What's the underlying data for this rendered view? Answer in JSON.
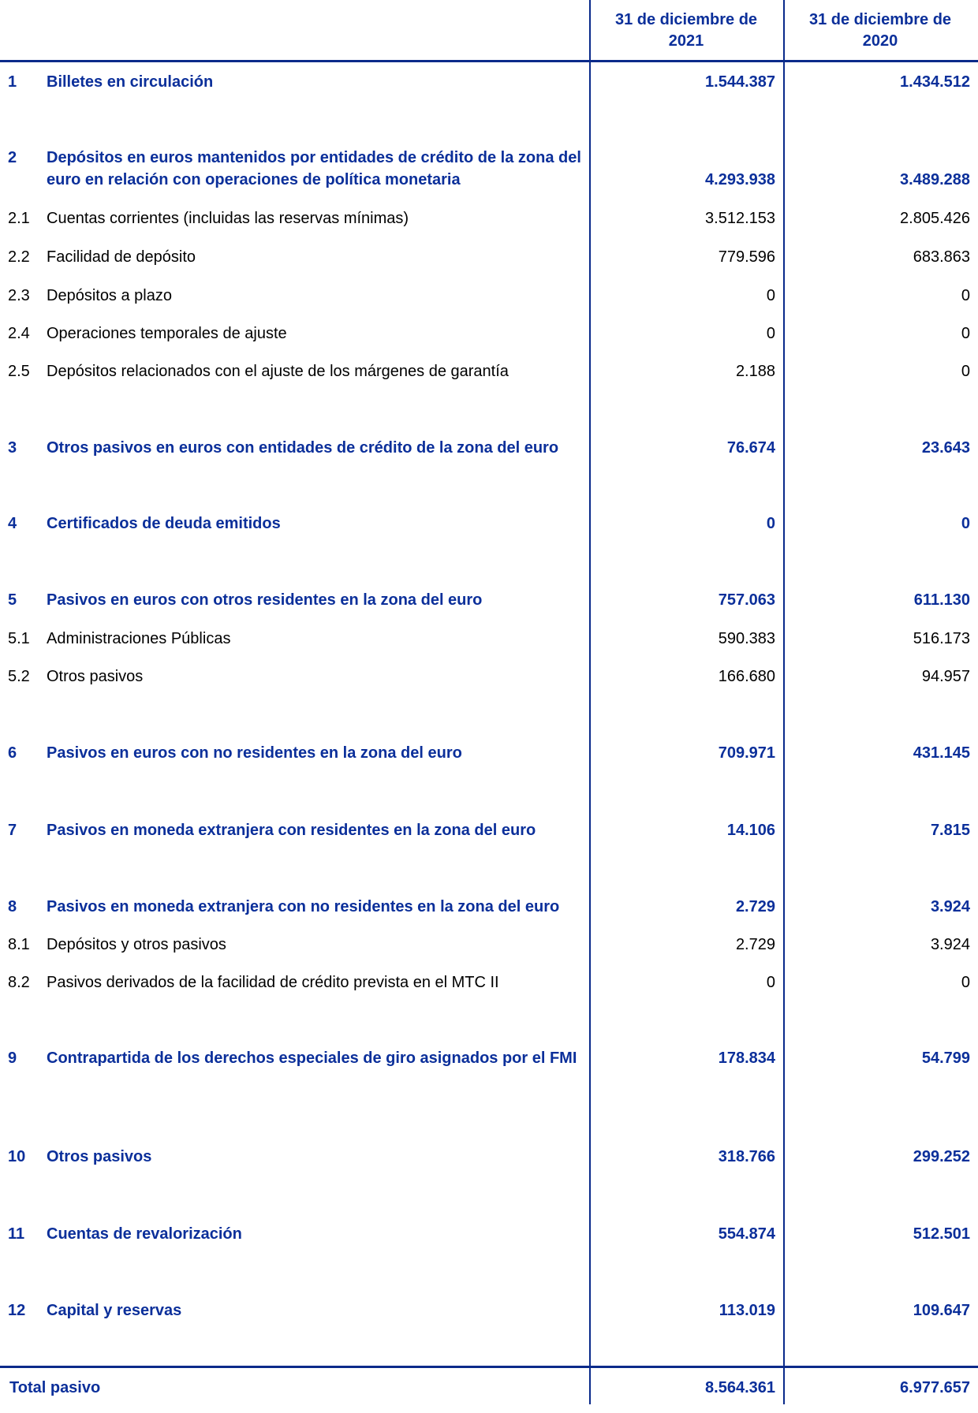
{
  "header": {
    "col1": "31 de diciembre de 2021",
    "col2": "31 de diciembre de 2020"
  },
  "rows": [
    {
      "num": "1",
      "label": "Billetes en circulación",
      "v2021": "1.544.387",
      "v2020": "1.434.512",
      "main": true
    },
    {
      "num": "2",
      "label": "Depósitos en euros mantenidos por entidades de crédito de la zona del euro en relación con operaciones de política monetaria",
      "v2021": "4.293.938",
      "v2020": "3.489.288",
      "main": true
    },
    {
      "num": "2.1",
      "label": "Cuentas corrientes (incluidas las reservas mínimas)",
      "v2021": "3.512.153",
      "v2020": "2.805.426",
      "main": false
    },
    {
      "num": "2.2",
      "label": "Facilidad de depósito",
      "v2021": "779.596",
      "v2020": "683.863",
      "main": false
    },
    {
      "num": "2.3",
      "label": "Depósitos a plazo",
      "v2021": "0",
      "v2020": "0",
      "main": false
    },
    {
      "num": "2.4",
      "label": "Operaciones temporales de ajuste",
      "v2021": "0",
      "v2020": "0",
      "main": false
    },
    {
      "num": "2.5",
      "label": "Depósitos relacionados con el ajuste de los márgenes de garantía",
      "v2021": "2.188",
      "v2020": "0",
      "main": false
    },
    {
      "num": "3",
      "label": "Otros pasivos en euros con entidades de crédito de la zona del euro",
      "v2021": "76.674",
      "v2020": "23.643",
      "main": true
    },
    {
      "num": "4",
      "label": "Certificados de deuda emitidos",
      "v2021": "0",
      "v2020": "0",
      "main": true
    },
    {
      "num": "5",
      "label": "Pasivos en euros con otros residentes en la zona del euro",
      "v2021": "757.063",
      "v2020": "611.130",
      "main": true
    },
    {
      "num": "5.1",
      "label": "Administraciones Públicas",
      "v2021": "590.383",
      "v2020": "516.173",
      "main": false
    },
    {
      "num": "5.2",
      "label": "Otros pasivos",
      "v2021": "166.680",
      "v2020": "94.957",
      "main": false
    },
    {
      "num": "6",
      "label": "Pasivos en euros con no residentes en la zona del euro",
      "v2021": "709.971",
      "v2020": "431.145",
      "main": true
    },
    {
      "num": "7",
      "label": "Pasivos en moneda extranjera con residentes en la zona del euro",
      "v2021": "14.106",
      "v2020": "7.815",
      "main": true
    },
    {
      "num": "8",
      "label": "Pasivos en moneda extranjera con no residentes en la zona del euro",
      "v2021": "2.729",
      "v2020": "3.924",
      "main": true
    },
    {
      "num": "8.1",
      "label": "Depósitos y otros pasivos",
      "v2021": "2.729",
      "v2020": "3.924",
      "main": false
    },
    {
      "num": "8.2",
      "label": "Pasivos derivados de la facilidad de crédito prevista en el MTC II",
      "v2021": "0",
      "v2020": "0",
      "main": false
    },
    {
      "num": "9",
      "label": "Contrapartida de los derechos especiales de giro asignados por el FMI",
      "v2021": "178.834",
      "v2020": "54.799",
      "main": true
    },
    {
      "num": "10",
      "label": "Otros pasivos",
      "v2021": "318.766",
      "v2020": "299.252",
      "main": true
    },
    {
      "num": "11",
      "label": "Cuentas de revalorización",
      "v2021": "554.874",
      "v2020": "512.501",
      "main": true
    },
    {
      "num": "12",
      "label": "Capital y reservas",
      "v2021": "113.019",
      "v2020": "109.647",
      "main": true
    }
  ],
  "total": {
    "label": "Total pasivo",
    "v2021": "8.564.361",
    "v2020": "6.977.657"
  }
}
